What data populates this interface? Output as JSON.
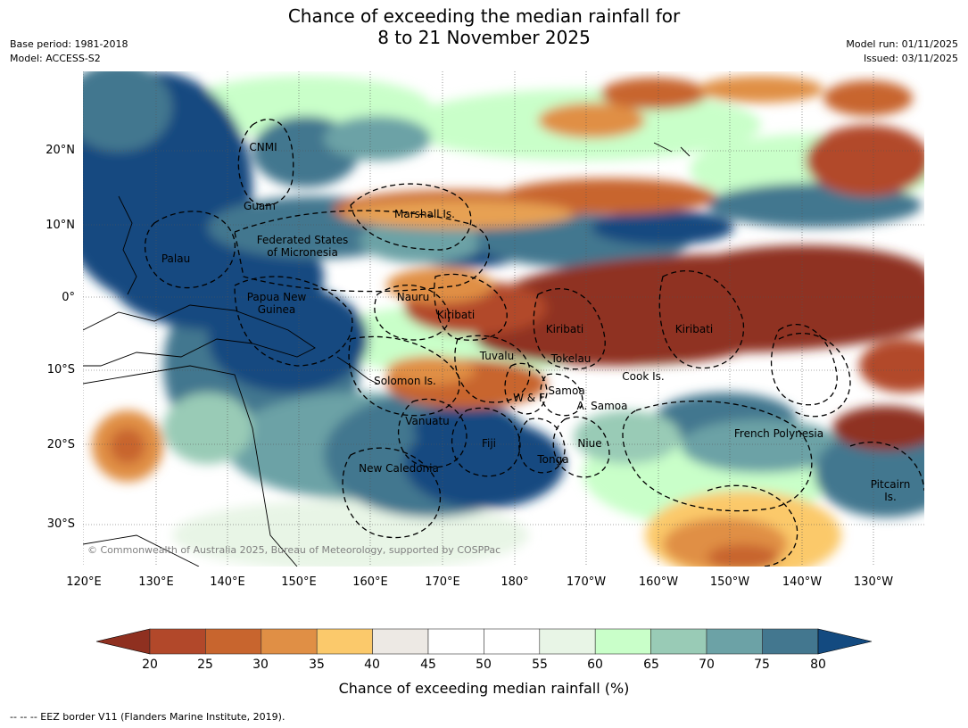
{
  "title": {
    "line1": "Chance of exceeding the median rainfall for",
    "line2": "8 to 21 November 2025"
  },
  "meta": {
    "base_period": "Base period: 1981-2018",
    "model": "Model: ACCESS-S2",
    "model_run": "Model run: 01/11/2025",
    "issued": "Issued: 03/11/2025"
  },
  "map": {
    "lat_ticks": [
      "20°N",
      "10°N",
      "0°",
      "10°S",
      "20°S",
      "30°S"
    ],
    "lon_ticks": [
      "120°E",
      "130°E",
      "140°E",
      "150°E",
      "160°E",
      "170°E",
      "180°",
      "170°W",
      "160°W",
      "150°W",
      "140°W",
      "130°W"
    ],
    "places": {
      "cnmi": "CNMI",
      "guam": "Guam",
      "marshall": "Marshall Is.",
      "fsm1": "Federated States",
      "fsm2": "of Micronesia",
      "palau": "Palau",
      "png1": "Papua New",
      "png2": "Guinea",
      "nauru": "Nauru",
      "kiribati_w": "Kiribati",
      "kiribati_c": "Kiribati",
      "kiribati_e": "Kiribati",
      "tuvalu": "Tuvalu",
      "tokelau": "Tokelau",
      "cook": "Cook Is.",
      "solomon": "Solomon Is.",
      "wf": "W & F",
      "samoa": "Samoa",
      "asamoa": "A. Samoa",
      "vanuatu": "Vanuatu",
      "fiji": "Fiji",
      "niue": "Niue",
      "tonga": "Tonga",
      "frpoly": "French Polynesia",
      "newcal": "New Caledonia",
      "pitcairn1": "Pitcairn",
      "pitcairn2": "Is."
    },
    "copyright": "© Commonwealth of Australia 2025, Bureau of Meteorology, supported by COSPPac"
  },
  "colorbar": {
    "labels": [
      "20",
      "25",
      "30",
      "35",
      "40",
      "45",
      "50",
      "55",
      "60",
      "65",
      "70",
      "75",
      "80"
    ],
    "colors": [
      "#b2482a",
      "#c8652e",
      "#e08f45",
      "#fbc96b",
      "#ede9e4",
      "#ffffff",
      "#ffffff",
      "#e8f5e6",
      "#c9ffc9",
      "#99cbb6",
      "#6ca2a6",
      "#43778f"
    ],
    "low_color": "#8f3020",
    "high_color": "#134a80",
    "title": "Chance of exceeding median rainfall (%)"
  },
  "footnote": "-- -- -- EEZ border V11 (Flanders Marine Institute, 2019)."
}
